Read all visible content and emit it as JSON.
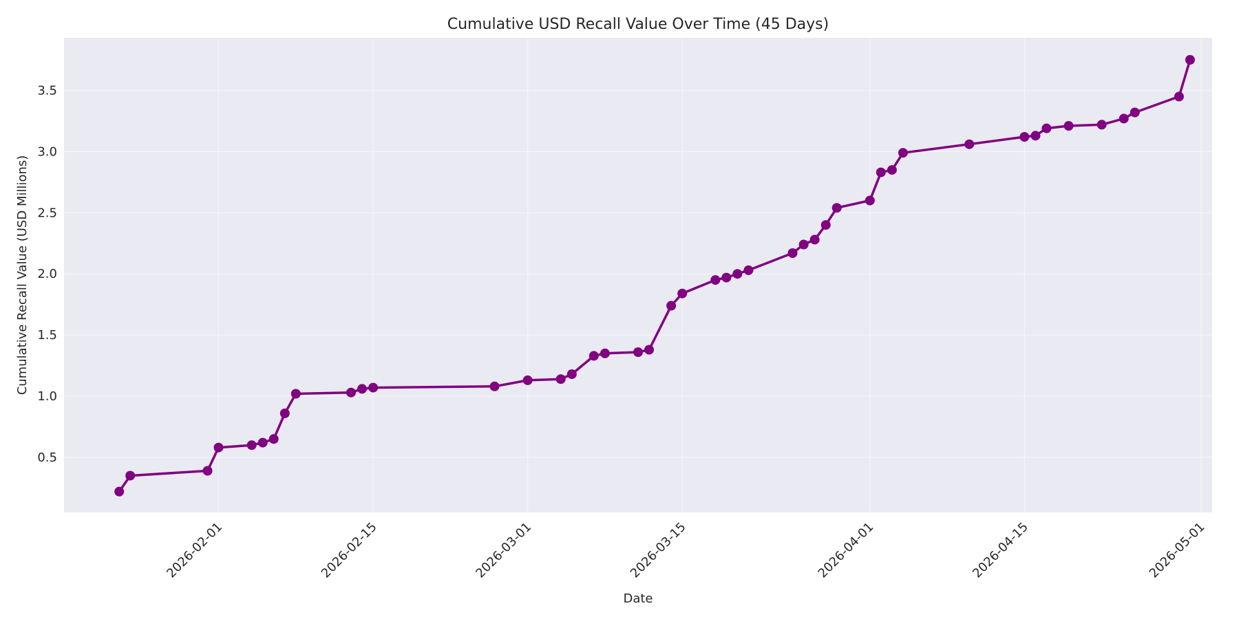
{
  "chart_data": {
    "type": "line",
    "title": "Cumulative USD Recall Value Over Time (45 Days)",
    "xlabel": "Date",
    "ylabel": "Cumulative Recall Value (USD Millions)",
    "grid": true,
    "legend": "none",
    "colors": {
      "line": "#800080",
      "plot_bg": "#eaeaf2",
      "grid": "#f5f5f8"
    },
    "xlim": [
      "2026-01-18",
      "2026-05-02"
    ],
    "ylim": [
      0.05,
      3.93
    ],
    "x_ticks": [
      "2026-02-01",
      "2026-02-15",
      "2026-03-01",
      "2026-03-15",
      "2026-04-01",
      "2026-04-15",
      "2026-05-01"
    ],
    "y_ticks": [
      0.5,
      1.0,
      1.5,
      2.0,
      2.5,
      3.0,
      3.5
    ],
    "y_tick_labels": [
      "0.5",
      "1.0",
      "1.5",
      "2.0",
      "2.5",
      "3.0",
      "3.5"
    ],
    "series": [
      {
        "x": [
          "2026-01-23",
          "2026-01-24",
          "2026-01-31",
          "2026-02-01",
          "2026-02-04",
          "2026-02-05",
          "2026-02-06",
          "2026-02-07",
          "2026-02-08",
          "2026-02-13",
          "2026-02-14",
          "2026-02-15",
          "2026-02-26",
          "2026-03-01",
          "2026-03-04",
          "2026-03-05",
          "2026-03-07",
          "2026-03-08",
          "2026-03-11",
          "2026-03-12",
          "2026-03-14",
          "2026-03-15",
          "2026-03-18",
          "2026-03-19",
          "2026-03-20",
          "2026-03-21",
          "2026-03-25",
          "2026-03-26",
          "2026-03-27",
          "2026-03-28",
          "2026-03-29",
          "2026-04-01",
          "2026-04-02",
          "2026-04-03",
          "2026-04-04",
          "2026-04-10",
          "2026-04-15",
          "2026-04-16",
          "2026-04-17",
          "2026-04-19",
          "2026-04-22",
          "2026-04-24",
          "2026-04-25",
          "2026-04-29",
          "2026-04-30"
        ],
        "y": [
          0.22,
          0.35,
          0.39,
          0.58,
          0.6,
          0.62,
          0.65,
          0.86,
          1.02,
          1.03,
          1.06,
          1.07,
          1.08,
          1.13,
          1.14,
          1.18,
          1.33,
          1.35,
          1.36,
          1.38,
          1.74,
          1.84,
          1.95,
          1.97,
          2.0,
          2.03,
          2.17,
          2.24,
          2.28,
          2.4,
          2.54,
          2.6,
          2.83,
          2.85,
          2.99,
          3.06,
          3.12,
          3.13,
          3.19,
          3.21,
          3.22,
          3.27,
          3.32,
          3.45,
          3.75
        ]
      }
    ]
  }
}
